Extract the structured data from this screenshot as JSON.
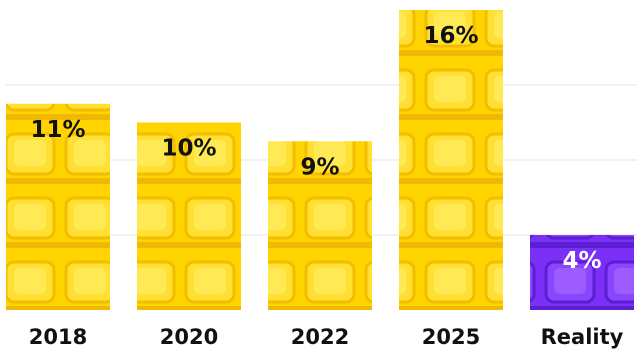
{
  "chart_data": {
    "type": "bar",
    "categories": [
      "2018",
      "2020",
      "2022",
      "2025",
      "Reality"
    ],
    "values": [
      11,
      10,
      9,
      16,
      4
    ],
    "value_labels": [
      "11%",
      "10%",
      "9%",
      "16%",
      "4%"
    ],
    "unit": "%",
    "ylim": [
      0,
      16
    ],
    "grid": true,
    "legend": "none",
    "title": "",
    "xlabel": "",
    "ylabel": ""
  },
  "colors": {
    "bar_default": "#FFD400",
    "bar_default_dark": "#F0B800",
    "bar_highlight": "#7B2FF7",
    "bar_highlight_dark": "#5A1FD0",
    "gridline": "#E3E3E3",
    "text": "#111111"
  },
  "highlighted_category": "Reality"
}
